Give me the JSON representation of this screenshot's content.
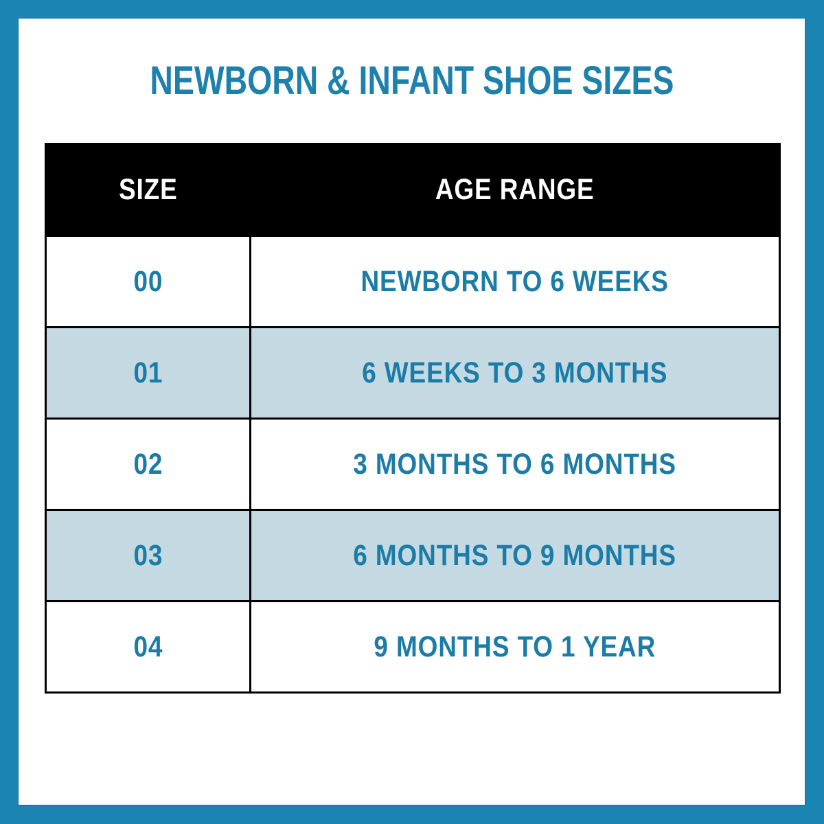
{
  "title": "NEWBORN & INFANT SHOE SIZES",
  "colors": {
    "frame": "#1a85b2",
    "accent_text": "#1d81ac",
    "cell_text": "#1a7ca7",
    "header_bg": "#000000",
    "header_text": "#ffffff",
    "row_bg": "#ffffff",
    "row_alt_bg": "#c5d9e2",
    "grid_border": "#000000",
    "card_bg": "#ffffff"
  },
  "table": {
    "columns": [
      "SIZE",
      "AGE RANGE"
    ],
    "rows": [
      {
        "size": "00",
        "age_range": "NEWBORN TO 6 WEEKS"
      },
      {
        "size": "01",
        "age_range": "6 WEEKS TO 3 MONTHS"
      },
      {
        "size": "02",
        "age_range": "3 MONTHS TO 6 MONTHS"
      },
      {
        "size": "03",
        "age_range": "6 MONTHS TO 9 MONTHS"
      },
      {
        "size": "04",
        "age_range": "9 MONTHS TO 1 YEAR"
      }
    ]
  },
  "chart_data": {
    "type": "table",
    "title": "NEWBORN & INFANT SHOE SIZES",
    "columns": [
      "SIZE",
      "AGE RANGE"
    ],
    "rows": [
      [
        "00",
        "NEWBORN TO 6 WEEKS"
      ],
      [
        "01",
        "6 WEEKS TO 3 MONTHS"
      ],
      [
        "02",
        "3 MONTHS TO 6 MONTHS"
      ],
      [
        "03",
        "6 MONTHS TO 9 MONTHS"
      ],
      [
        "04",
        "9 MONTHS TO 1 YEAR"
      ]
    ],
    "layout_hints": {
      "header_style": "black background, white uppercase bold text",
      "zebra_striping": "white / light blue alternating starting with white",
      "text_alignment": "center"
    }
  }
}
